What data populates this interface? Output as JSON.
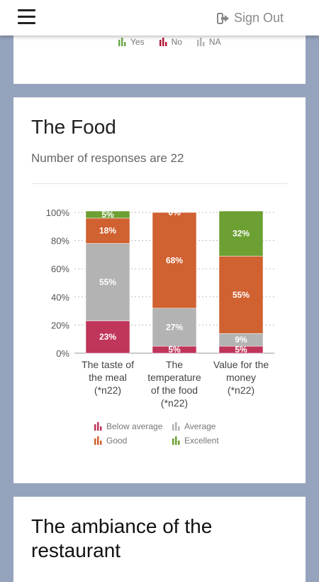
{
  "header": {
    "menu_icon": "hamburger-icon",
    "signout_icon": "sign-out-icon",
    "signout_label": "Sign Out"
  },
  "top_legend": [
    {
      "label": "Yes",
      "color": "#6aa84f"
    },
    {
      "label": "No",
      "color": "#b5173a"
    },
    {
      "label": "NA",
      "color": "#b7b7b7"
    }
  ],
  "food": {
    "title": "The Food",
    "subtitle": "Number of responses are 22"
  },
  "chart_data": {
    "type": "bar",
    "stacked": true,
    "categories": [
      [
        "The taste of",
        "the meal",
        "(*n22)"
      ],
      [
        "The",
        "temperature",
        "of the food",
        "(*n22)"
      ],
      [
        "Value for the",
        "money",
        "(*n22)"
      ]
    ],
    "series": [
      {
        "name": "Below average",
        "color": "#c0355a",
        "values": [
          23,
          5,
          5
        ],
        "labels": [
          "23%",
          "5%",
          "5%"
        ]
      },
      {
        "name": "Average",
        "color": "#b3b3b3",
        "values": [
          55,
          27,
          9
        ],
        "labels": [
          "55%",
          "27%",
          "9%"
        ]
      },
      {
        "name": "Good",
        "color": "#d06130",
        "values": [
          18,
          68,
          55
        ],
        "labels": [
          "18%",
          "68%",
          "55%"
        ]
      },
      {
        "name": "Excellent",
        "color": "#6ca033",
        "values": [
          5,
          0,
          32
        ],
        "labels": [
          "5%",
          "0%",
          "32%"
        ]
      }
    ],
    "ylim": [
      0,
      100
    ],
    "yticks": [
      "0%",
      "20%",
      "40%",
      "60%",
      "80%",
      "100%"
    ],
    "grid": true,
    "legend_position": "bottom"
  },
  "ambiance": {
    "title": "The ambiance of the restaurant"
  }
}
